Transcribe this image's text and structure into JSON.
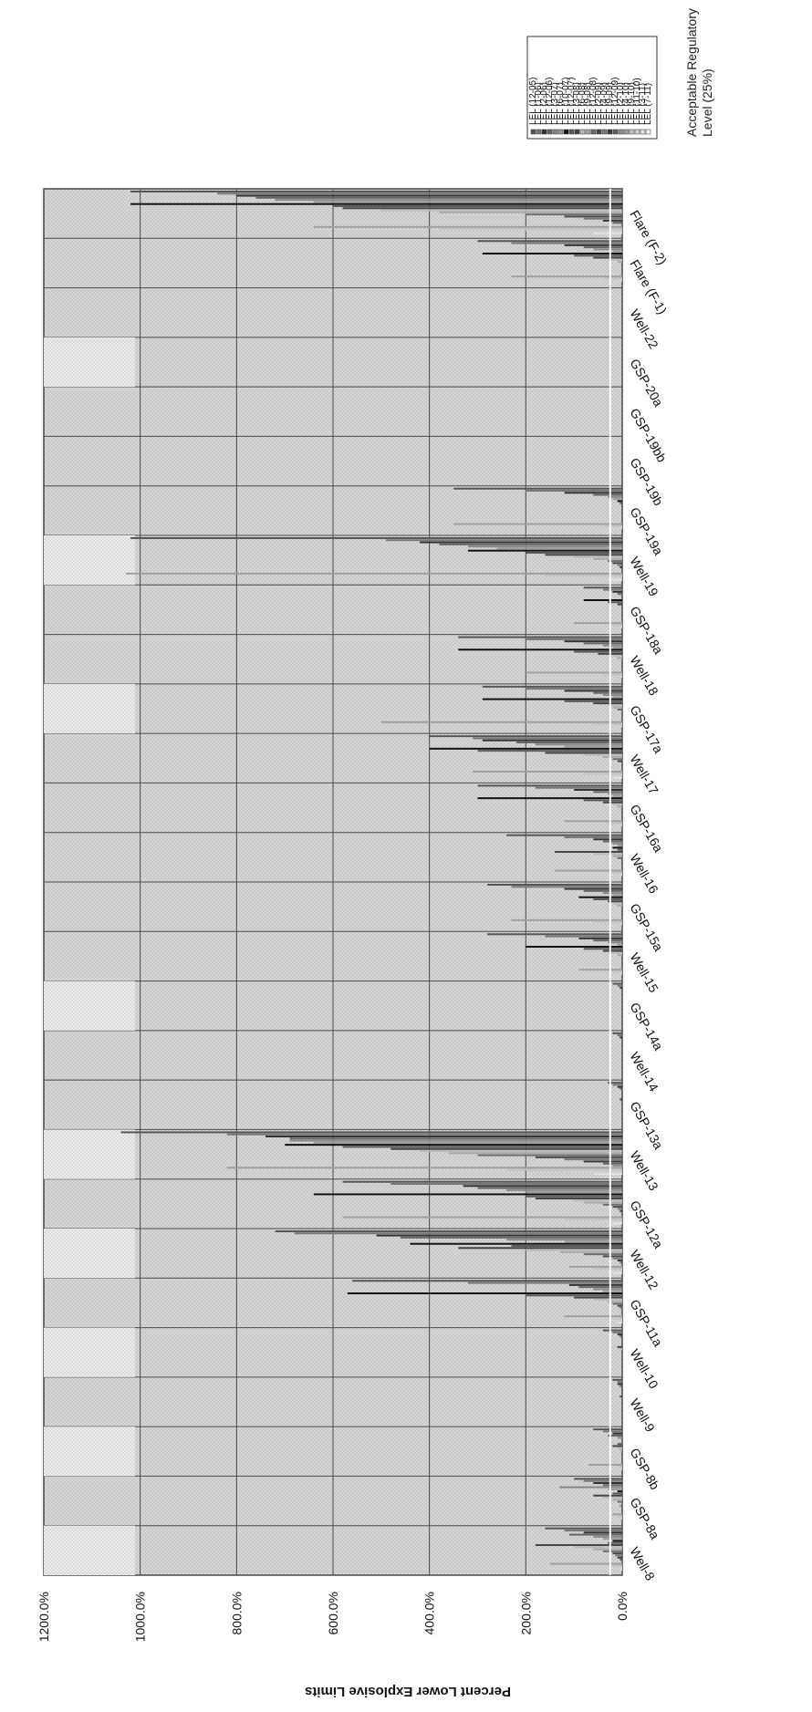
{
  "chart_data": {
    "type": "bar",
    "orientation": "rotated-90-clockwise",
    "ylabel": "Percent Lower Explosive Limits",
    "y_ticks": [
      "0.0%",
      "200.0%",
      "400.0%",
      "600.0%",
      "800.0%",
      "1000.0%",
      "1200.0%"
    ],
    "ylim": [
      0,
      1200
    ],
    "grid": true,
    "legend_position": "top-right",
    "categories": [
      "Well-8",
      "GSP-8a",
      "GSP-8b",
      "Well-9",
      "Well-10",
      "GSP-11a",
      "Well-12",
      "GSP-12a",
      "Well-13",
      "GSP-13a",
      "Well-14",
      "GSP-14a",
      "Well-15",
      "GSP-15a",
      "Well-16",
      "GSP-16a",
      "Well-17",
      "GSP-17a",
      "Well-18",
      "GSP-18a",
      "Well-19",
      "GSP-19a",
      "GSP-19b",
      "GSP-19bb",
      "GSP-20a",
      "Well-22",
      "Flare (F-1)",
      "Flare (F-2)"
    ],
    "series": [
      {
        "name": "LEL (12-05)",
        "color": "#555555"
      },
      {
        "name": "LEL (1-06)",
        "color": "#777777"
      },
      {
        "name": "LEL (2-06)",
        "color": "#333333"
      },
      {
        "name": "LEL (12-06)",
        "color": "#666666"
      },
      {
        "name": "LEL (3-07)",
        "color": "#888888"
      },
      {
        "name": "LEL (6-07)",
        "color": "#999999"
      },
      {
        "name": "LEL (10-07)",
        "color": "#111111"
      },
      {
        "name": "LEL (12-07)",
        "color": "#5a5a5a"
      },
      {
        "name": "LEL (3-08)",
        "color": "#444444"
      },
      {
        "name": "LEL (6-08)",
        "color": "#bbbbbb"
      },
      {
        "name": "LEL (9-08)",
        "color": "#aaaaaa"
      },
      {
        "name": "LEL (12-08)",
        "color": "#6e6e6e"
      },
      {
        "name": "LEL (2-09)",
        "color": "#4a4a4a"
      },
      {
        "name": "LEL (4-09)",
        "color": "#7a7a7a"
      },
      {
        "name": "LEL (9-09)",
        "color": "#3c3c3c"
      },
      {
        "name": "LEL (12-09)",
        "color": "#606060"
      },
      {
        "name": "LEL (2-10)",
        "color": "#909090"
      },
      {
        "name": "LEL (4-10)",
        "color": "#a0a0a0"
      },
      {
        "name": "LEL (9-10)",
        "color": "#c4c4c4"
      },
      {
        "name": "LEL (11-10)",
        "color": "#d0d0d0"
      },
      {
        "name": "LEL (3-11)",
        "color": "#e2e2e2"
      },
      {
        "name": "LEL (7-11)",
        "color": "#f2f2f2"
      }
    ],
    "category_values": [
      [
        160,
        120,
        80,
        110,
        60,
        40,
        20,
        30,
        180,
        100,
        60,
        40,
        20,
        15,
        10,
        5,
        0,
        150,
        20,
        10,
        5,
        0
      ],
      [
        100,
        80,
        60,
        40,
        130,
        30,
        10,
        20,
        60,
        40,
        20,
        10,
        0,
        5,
        0,
        0,
        0,
        20,
        10,
        5,
        0,
        0
      ],
      [
        60,
        40,
        20,
        30,
        10,
        0,
        0,
        10,
        20,
        10,
        5,
        0,
        0,
        0,
        0,
        0,
        0,
        70,
        10,
        5,
        0,
        0
      ],
      [
        20,
        10,
        10,
        5,
        0,
        0,
        0,
        0,
        5,
        0,
        0,
        0,
        0,
        0,
        0,
        0,
        0,
        0,
        0,
        0,
        0,
        0
      ],
      [
        40,
        20,
        10,
        5,
        0,
        0,
        0,
        0,
        10,
        5,
        0,
        0,
        0,
        0,
        0,
        0,
        0,
        0,
        0,
        0,
        0,
        0
      ],
      [
        560,
        320,
        110,
        90,
        60,
        40,
        570,
        200,
        100,
        60,
        30,
        20,
        10,
        5,
        0,
        0,
        0,
        120,
        30,
        20,
        10,
        0
      ],
      [
        720,
        680,
        510,
        460,
        240,
        120,
        440,
        230,
        340,
        200,
        130,
        80,
        40,
        20,
        10,
        5,
        0,
        110,
        60,
        40,
        20,
        0
      ],
      [
        580,
        480,
        330,
        300,
        240,
        200,
        640,
        200,
        180,
        100,
        80,
        40,
        20,
        10,
        5,
        0,
        0,
        580,
        120,
        60,
        20,
        0
      ],
      [
        1040,
        820,
        740,
        690,
        690,
        640,
        700,
        580,
        480,
        420,
        360,
        300,
        180,
        120,
        80,
        40,
        20,
        820,
        240,
        120,
        60,
        0
      ],
      [
        30,
        20,
        10,
        5,
        0,
        0,
        0,
        0,
        5,
        0,
        0,
        0,
        0,
        0,
        0,
        0,
        0,
        0,
        0,
        0,
        0,
        0
      ],
      [
        20,
        10,
        5,
        0,
        0,
        0,
        0,
        0,
        0,
        0,
        0,
        0,
        0,
        0,
        0,
        0,
        0,
        0,
        0,
        0,
        0,
        0
      ],
      [
        20,
        10,
        5,
        0,
        0,
        0,
        0,
        0,
        0,
        0,
        0,
        0,
        0,
        0,
        0,
        0,
        0,
        0,
        0,
        0,
        0,
        0
      ],
      [
        280,
        160,
        90,
        60,
        30,
        10,
        200,
        80,
        40,
        20,
        10,
        0,
        0,
        0,
        0,
        0,
        0,
        90,
        20,
        10,
        0,
        0
      ],
      [
        280,
        230,
        120,
        80,
        40,
        20,
        90,
        60,
        30,
        20,
        10,
        0,
        0,
        0,
        0,
        0,
        0,
        230,
        60,
        20,
        0,
        0
      ],
      [
        240,
        120,
        60,
        40,
        20,
        10,
        20,
        10,
        140,
        60,
        20,
        10,
        0,
        0,
        0,
        0,
        0,
        140,
        20,
        10,
        0,
        0
      ],
      [
        300,
        180,
        100,
        60,
        30,
        20,
        300,
        80,
        40,
        20,
        10,
        0,
        0,
        0,
        0,
        0,
        0,
        120,
        30,
        10,
        0,
        0
      ],
      [
        400,
        310,
        290,
        220,
        180,
        120,
        400,
        300,
        160,
        80,
        40,
        20,
        10,
        0,
        0,
        0,
        0,
        310,
        80,
        40,
        20,
        0
      ],
      [
        290,
        200,
        120,
        60,
        40,
        20,
        290,
        120,
        60,
        30,
        20,
        10,
        0,
        0,
        0,
        0,
        0,
        500,
        60,
        20,
        0,
        0
      ],
      [
        340,
        200,
        120,
        80,
        40,
        20,
        340,
        100,
        50,
        20,
        10,
        0,
        0,
        0,
        0,
        0,
        0,
        200,
        40,
        10,
        0,
        0
      ],
      [
        80,
        40,
        20,
        10,
        0,
        0,
        80,
        30,
        10,
        0,
        0,
        0,
        0,
        0,
        0,
        0,
        0,
        100,
        20,
        10,
        0,
        0
      ],
      [
        1020,
        490,
        420,
        380,
        320,
        260,
        320,
        200,
        160,
        100,
        60,
        30,
        20,
        10,
        5,
        0,
        0,
        1030,
        160,
        60,
        30,
        0
      ],
      [
        350,
        200,
        120,
        60,
        30,
        20,
        10,
        5,
        0,
        0,
        0,
        0,
        0,
        0,
        0,
        0,
        0,
        350,
        40,
        20,
        0,
        0
      ],
      [
        0,
        0,
        0,
        0,
        0,
        0,
        0,
        0,
        0,
        0,
        0,
        0,
        0,
        0,
        0,
        0,
        0,
        0,
        0,
        0,
        0,
        0
      ],
      [
        0,
        0,
        0,
        0,
        0,
        0,
        0,
        0,
        0,
        0,
        0,
        0,
        0,
        0,
        0,
        0,
        0,
        0,
        0,
        0,
        0,
        0
      ],
      [
        0,
        0,
        0,
        0,
        0,
        0,
        0,
        0,
        0,
        0,
        0,
        0,
        0,
        0,
        0,
        0,
        0,
        0,
        0,
        0,
        0,
        0
      ],
      [
        0,
        0,
        0,
        0,
        0,
        0,
        0,
        0,
        0,
        0,
        0,
        0,
        0,
        0,
        0,
        0,
        0,
        0,
        0,
        0,
        0,
        0
      ],
      [
        300,
        230,
        120,
        80,
        60,
        20,
        290,
        100,
        60,
        20,
        10,
        0,
        0,
        0,
        0,
        0,
        0,
        230,
        40,
        20,
        0,
        0
      ],
      [
        1020,
        840,
        800,
        760,
        720,
        640,
        1020,
        600,
        580,
        500,
        380,
        200,
        120,
        80,
        40,
        20,
        0,
        640,
        380,
        200,
        60,
        0
      ]
    ],
    "reference_line": {
      "label": "Acceptable Regulatory Level (25%)",
      "value": 25
    }
  }
}
